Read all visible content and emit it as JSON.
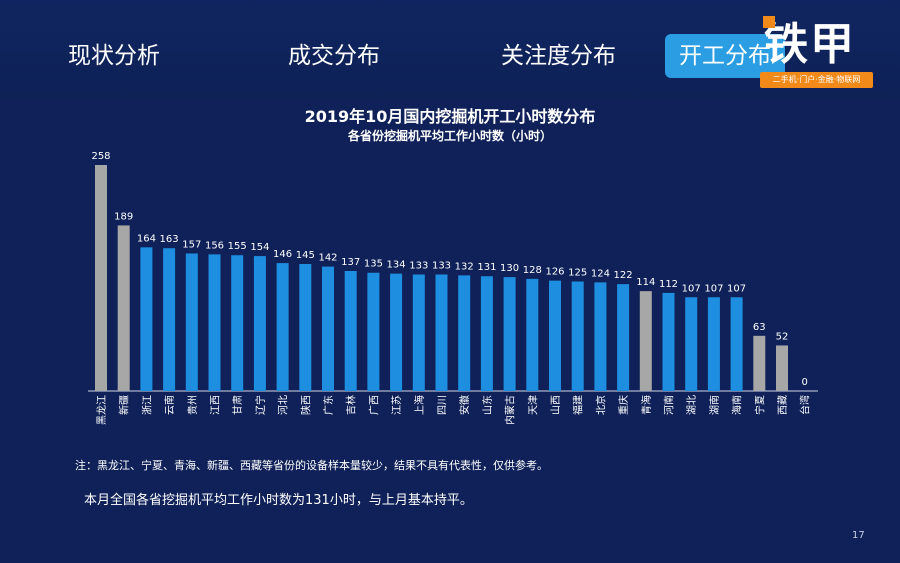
{
  "nav": {
    "tabs": [
      {
        "label": "现状分析"
      },
      {
        "label": "成交分布"
      },
      {
        "label": "关注度分布"
      },
      {
        "label": "开工分布"
      }
    ],
    "active_tab": "开工分布"
  },
  "logo": {
    "text": "铁甲",
    "tagline": "二手机·门户·金融·物联网"
  },
  "colors": {
    "highlight_bar": "#1e8fe0",
    "flagged_bar": "#a7a7a7",
    "axis": "#cfd6e6",
    "background": "#0f2158",
    "accent": "#f28a1a"
  },
  "chart_data": {
    "type": "bar",
    "title": "2019年10月国内挖掘机开工小时数分布",
    "subtitle": "各省份挖掘机平均工作小时数（小时）",
    "categories": [
      "黑龙江",
      "新疆",
      "浙江",
      "云南",
      "贵州",
      "江西",
      "甘肃",
      "辽宁",
      "河北",
      "陕西",
      "广东",
      "吉林",
      "广西",
      "江苏",
      "上海",
      "四川",
      "安徽",
      "山东",
      "内蒙古",
      "天津",
      "山西",
      "福建",
      "北京",
      "重庆",
      "青海",
      "河南",
      "湖北",
      "湖南",
      "海南",
      "宁夏",
      "西藏",
      "台湾"
    ],
    "values": [
      258,
      189,
      164,
      163,
      157,
      156,
      155,
      154,
      146,
      145,
      142,
      137,
      135,
      134,
      133,
      133,
      132,
      131,
      130,
      128,
      126,
      125,
      124,
      122,
      114,
      112,
      107,
      107,
      107,
      63,
      52,
      0
    ],
    "flagged_categories": [
      "黑龙江",
      "新疆",
      "青海",
      "宁夏",
      "西藏"
    ],
    "ylim": [
      0,
      258
    ],
    "grid": false,
    "legend": "none"
  },
  "note": "注：黑龙江、宁夏、青海、新疆、西藏等省份的设备样本量较少，结果不具有代表性，仅供参考。",
  "summary": "本月全国各省挖掘机平均工作小时数为131小时，与上月基本持平。",
  "page_number": "17"
}
